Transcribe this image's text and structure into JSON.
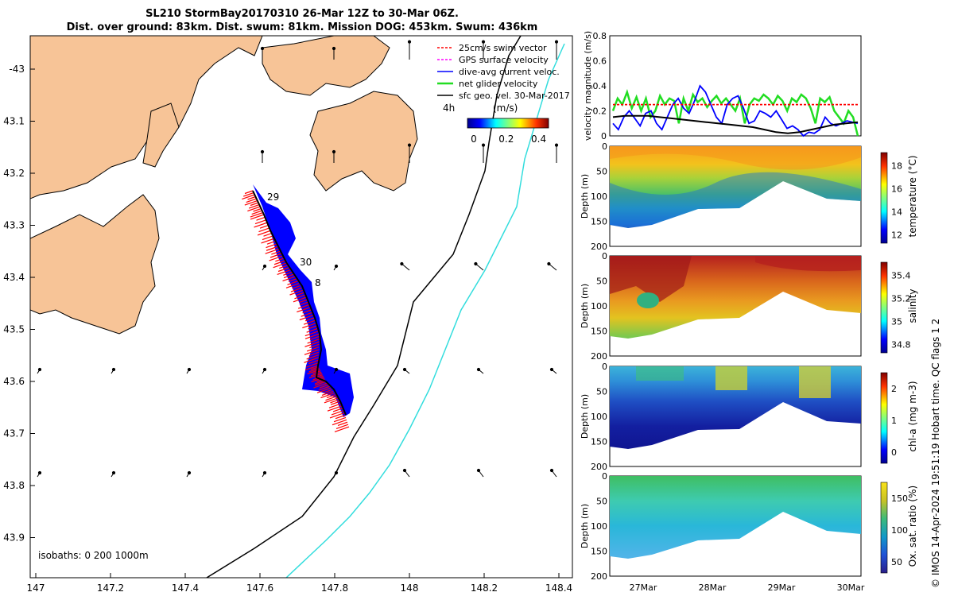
{
  "title": {
    "line1": "SL210 StormBay20170310 26-Mar 12Z to 30-Mar 06Z.",
    "line2": "Dist. over ground: 83km. Dist. swum: 81km. Mission DOG: 453km. Swum: 436km"
  },
  "credit": "© IMOS 14-Apr-2024 19:51:19 Hobart time. QC flags 1  2",
  "colors": {
    "land": "#f7c497",
    "glider_red": "#ff0000",
    "current_blue": "#0000ff",
    "net_green": "#22dd22",
    "isobath200": "#000000",
    "isobath1000": "#33dddd"
  },
  "chart_data": [
    {
      "type": "map",
      "xticks": [
        "147",
        "147.2",
        "147.4",
        "147.6",
        "147.8",
        "148",
        "148.2",
        "148.4"
      ],
      "yticks": [
        "-43",
        "43.1",
        "43.2",
        "43.3",
        "43.4",
        "43.5",
        "43.6",
        "43.7",
        "43.8",
        "43.9"
      ],
      "legend": [
        {
          "label": "25cm/s swim vector",
          "color": "#ff0000"
        },
        {
          "label": "GPS surface velocity",
          "color": "#ff00ff"
        },
        {
          "label": "dive-avg current veloc.",
          "color": "#0000ff"
        },
        {
          "label": "net glider velocity",
          "color": "#22dd22"
        },
        {
          "label": "sfc geo. vel. 30-Mar-2017",
          "color": "#000000"
        }
      ],
      "legend_extra": "4h",
      "colorbar": {
        "label": "(m/s)",
        "ticks": [
          "0",
          "0.2",
          "0.4"
        ],
        "range": [
          0,
          0.5
        ]
      },
      "day_labels": [
        "29",
        "30",
        "8"
      ],
      "isobaths_label": "isobaths: 0   200  1000m"
    },
    {
      "type": "line",
      "ylabel": "velocity magnitude (m/s)",
      "yticks": [
        "0",
        "0.2",
        "0.4",
        "0.6",
        "0.8"
      ],
      "ylim": [
        0,
        0.8
      ],
      "series": [
        {
          "color": "#22dd22",
          "values": [
            0.2,
            0.3,
            0.25,
            0.35,
            0.22,
            0.31,
            0.2,
            0.3,
            0.15,
            0.2,
            0.32,
            0.25,
            0.3,
            0.28,
            0.1,
            0.3,
            0.2,
            0.33,
            0.27,
            0.3,
            0.23,
            0.28,
            0.32,
            0.26,
            0.3,
            0.25,
            0.2,
            0.3,
            0.1,
            0.25,
            0.3,
            0.28,
            0.33,
            0.3,
            0.25,
            0.32,
            0.28,
            0.2,
            0.3,
            0.27,
            0.33,
            0.3,
            0.22,
            0.1,
            0.3,
            0.27,
            0.31,
            0.2,
            0.15,
            0.1,
            0.2,
            0.15,
            0.0
          ]
        },
        {
          "color": "#0000ff",
          "values": [
            0.1,
            0.05,
            0.15,
            0.2,
            0.14,
            0.08,
            0.18,
            0.2,
            0.1,
            0.05,
            0.15,
            0.25,
            0.3,
            0.22,
            0.18,
            0.28,
            0.4,
            0.35,
            0.25,
            0.15,
            0.1,
            0.25,
            0.3,
            0.32,
            0.22,
            0.1,
            0.12,
            0.2,
            0.18,
            0.15,
            0.2,
            0.13,
            0.06,
            0.08,
            0.05,
            0.0,
            0.03,
            0.02,
            0.05,
            0.15,
            0.1,
            0.08,
            0.1,
            0.12,
            0.11,
            0.1
          ]
        },
        {
          "color": "#ff0000",
          "values": [
            0.25,
            0.25,
            0.25,
            0.25,
            0.25,
            0.25,
            0.25,
            0.25,
            0.25,
            0.25,
            0.25,
            0.25,
            0.25,
            0.25
          ]
        },
        {
          "color": "#000000",
          "values": [
            0.15,
            0.16,
            0.16,
            0.16,
            0.15,
            0.14,
            0.13,
            0.12,
            0.11,
            0.1,
            0.09,
            0.08,
            0.07,
            0.05,
            0.03,
            0.02,
            0.03,
            0.05,
            0.07,
            0.09,
            0.1,
            0.11
          ]
        }
      ]
    },
    {
      "type": "heatmap",
      "ylabel": "Depth (m)",
      "cbar_label": "temperature (°C)",
      "cbar_ticks": [
        "12",
        "14",
        "16",
        "18"
      ],
      "yticks": [
        "0",
        "50",
        "100",
        "150",
        "200"
      ]
    },
    {
      "type": "heatmap",
      "ylabel": "Depth (m)",
      "cbar_label": "salinity",
      "cbar_ticks": [
        "34.8",
        "35",
        "35.2",
        "35.4"
      ],
      "yticks": [
        "0",
        "50",
        "100",
        "150",
        "200"
      ]
    },
    {
      "type": "heatmap",
      "ylabel": "Depth (m)",
      "cbar_label": "chl-a (mg m-3)",
      "cbar_ticks": [
        "0",
        "1",
        "2"
      ],
      "yticks": [
        "0",
        "50",
        "100",
        "150",
        "200"
      ]
    },
    {
      "type": "heatmap",
      "ylabel": "Depth (m)",
      "cbar_label": "Ox. sat. ratio (%)",
      "cbar_ticks": [
        "50",
        "100",
        "150"
      ],
      "yticks": [
        "0",
        "50",
        "100",
        "150",
        "200"
      ],
      "xticks": [
        "27Mar",
        "28Mar",
        "29Mar",
        "30Mar"
      ]
    }
  ]
}
